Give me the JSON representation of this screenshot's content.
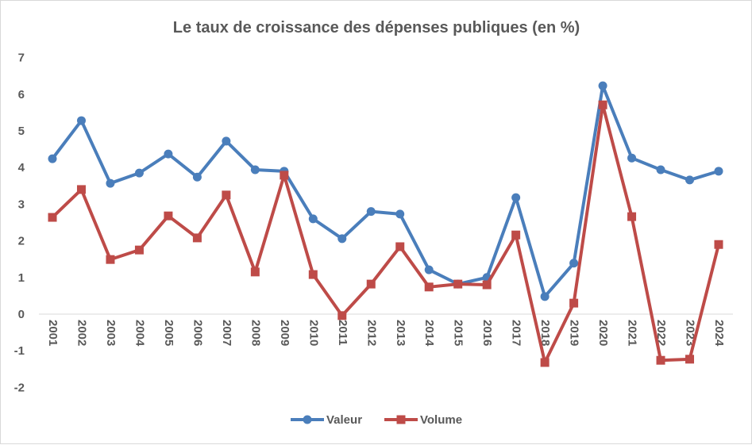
{
  "chart_data": {
    "type": "line",
    "title": "Le taux de croissance des dépenses publiques (en %)",
    "xlabel": "",
    "ylabel": "",
    "ylim": [
      -2,
      7
    ],
    "yticks": [
      "-2",
      "-1",
      "0",
      "1",
      "2",
      "3",
      "4",
      "5",
      "6",
      "7"
    ],
    "grid": false,
    "legend_position": "bottom",
    "categories": [
      "2001",
      "2002",
      "2003",
      "2004",
      "2005",
      "2006",
      "2007",
      "2008",
      "2009",
      "2010",
      "2011",
      "2012",
      "2013",
      "2014",
      "2015",
      "2016",
      "2017",
      "2018",
      "2019",
      "2020",
      "2021",
      "2022",
      "2023",
      "2024"
    ],
    "series": [
      {
        "name": "Valeur",
        "color": "#4a7ebb",
        "marker": "circle",
        "values": [
          4.24,
          5.28,
          3.57,
          3.85,
          4.37,
          3.74,
          4.72,
          3.94,
          3.9,
          2.6,
          2.06,
          2.8,
          2.73,
          1.21,
          0.82,
          1.0,
          3.18,
          0.48,
          1.39,
          6.23,
          4.26,
          3.94,
          3.66,
          3.9
        ]
      },
      {
        "name": "Volume",
        "color": "#be4b48",
        "marker": "square",
        "values": [
          2.64,
          3.4,
          1.49,
          1.75,
          2.68,
          2.08,
          3.25,
          1.15,
          3.79,
          1.08,
          -0.04,
          0.82,
          1.84,
          0.74,
          0.82,
          0.8,
          2.16,
          -1.32,
          0.3,
          5.71,
          2.66,
          -1.26,
          -1.23,
          1.9
        ]
      }
    ]
  }
}
